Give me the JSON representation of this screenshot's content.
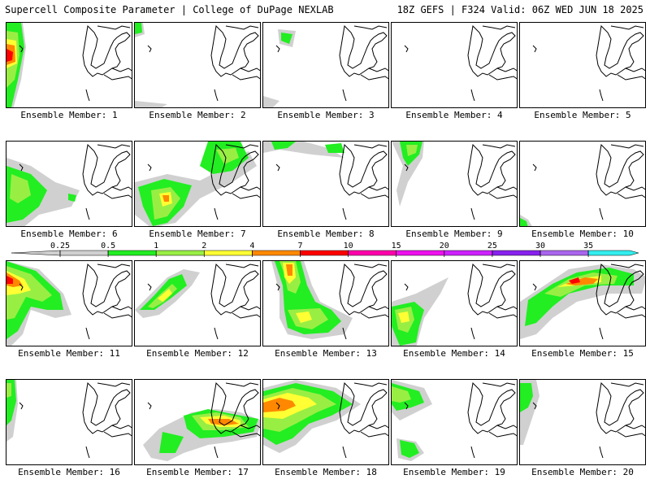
{
  "header": {
    "title_left": "Supercell Composite Parameter | College of DuPage NEXLAB",
    "title_right": "18Z GEFS | F324 Valid: 06Z WED JUN 18 2025"
  },
  "member_label_prefix": "Ensemble Member:",
  "members": [
    {
      "id": "1",
      "label": "Ensemble Member: 1"
    },
    {
      "id": "2",
      "label": "Ensemble Member: 2"
    },
    {
      "id": "3",
      "label": "Ensemble Member: 3"
    },
    {
      "id": "4",
      "label": "Ensemble Member: 4"
    },
    {
      "id": "5",
      "label": "Ensemble Member: 5"
    },
    {
      "id": "6",
      "label": "Ensemble Member: 6"
    },
    {
      "id": "7",
      "label": "Ensemble Member: 7"
    },
    {
      "id": "8",
      "label": "Ensemble Member: 8"
    },
    {
      "id": "9",
      "label": "Ensemble Member: 9"
    },
    {
      "id": "10",
      "label": "Ensemble Member: 10"
    },
    {
      "id": "11",
      "label": "Ensemble Member: 11"
    },
    {
      "id": "12",
      "label": "Ensemble Member: 12"
    },
    {
      "id": "13",
      "label": "Ensemble Member: 13"
    },
    {
      "id": "14",
      "label": "Ensemble Member: 14"
    },
    {
      "id": "15",
      "label": "Ensemble Member: 15"
    },
    {
      "id": "16",
      "label": "Ensemble Member: 16"
    },
    {
      "id": "17",
      "label": "Ensemble Member: 17"
    },
    {
      "id": "18",
      "label": "Ensemble Member: 18"
    },
    {
      "id": "19",
      "label": "Ensemble Member: 19"
    },
    {
      "id": "20",
      "label": "Ensemble Member: 20"
    }
  ],
  "colorbar": {
    "ticks": [
      "0.25",
      "0.5",
      "1",
      "2",
      "4",
      "7",
      "10",
      "15",
      "20",
      "25",
      "30",
      "35"
    ],
    "colors": [
      "#d0d0d0",
      "#22ee22",
      "#99ee44",
      "#ffff33",
      "#ff8800",
      "#ff0000",
      "#ff00aa",
      "#ee11ee",
      "#cc22ff",
      "#8822ee",
      "#aa66ee",
      "#33eeee"
    ]
  }
}
